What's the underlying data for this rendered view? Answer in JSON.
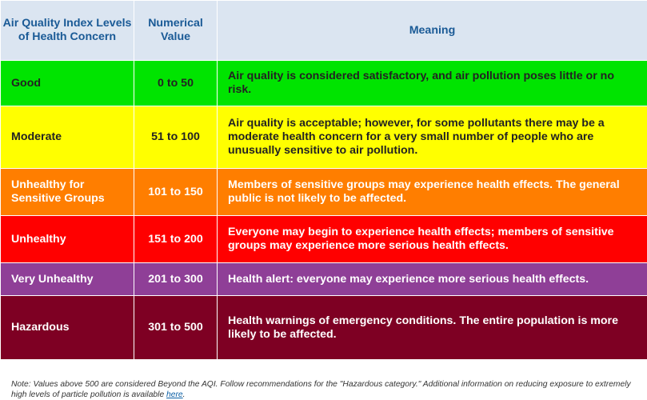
{
  "header": {
    "col1": "Air Quality Index Levels of Health Concern",
    "col2": "Numerical Value",
    "col3": "Meaning"
  },
  "rows": [
    {
      "level": "Good",
      "range": "0 to 50",
      "meaning": "Air quality is considered satisfactory, and air pollution poses little or no risk.",
      "bg": "#00e400",
      "fg": "#222222"
    },
    {
      "level": "Moderate",
      "range": "51 to 100",
      "meaning": "Air quality is acceptable; however, for some pollutants there may be a moderate health concern for a very small number of people who are unusually sensitive to air pollution.",
      "bg": "#ffff00",
      "fg": "#222222"
    },
    {
      "level": "Unhealthy for Sensitive Groups",
      "range": "101 to 150",
      "meaning": "Members of sensitive groups may experience health effects. The general public is not likely to be affected.",
      "bg": "#ff7e00",
      "fg": "#ffffff"
    },
    {
      "level": "Unhealthy",
      "range": "151 to 200",
      "meaning": "Everyone may begin to experience health effects; members of sensitive groups may experience more serious health effects.",
      "bg": "#ff0000",
      "fg": "#ffffff"
    },
    {
      "level": "Very Unhealthy",
      "range": "201 to 300",
      "meaning": "Health alert: everyone may experience more serious health effects.",
      "bg": "#8f3f97",
      "fg": "#ffffff"
    },
    {
      "level": "Hazardous",
      "range": "301 to 500",
      "meaning": "Health warnings of emergency conditions. The entire population is more likely to be affected.",
      "bg": "#7e0023",
      "fg": "#ffffff"
    }
  ],
  "note": {
    "text": "Note: Values above 500 are considered Beyond the AQI. Follow recommendations for the \"Hazardous category.\" Additional information on reducing exposure to extremely high levels of particle pollution is available ",
    "link_text": "here",
    "tail": "."
  },
  "colors": {
    "header_bg": "#dbe5f1",
    "header_text": "#1a5a96",
    "link": "#0b5fa5"
  }
}
